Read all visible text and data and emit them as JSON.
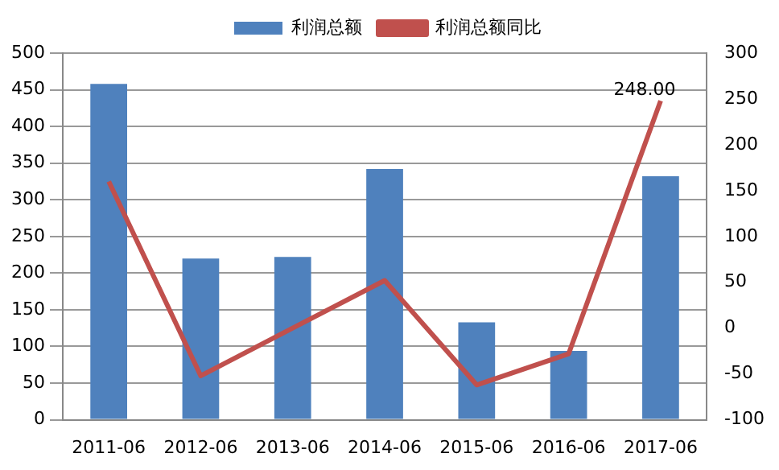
{
  "chart_data": {
    "type": "bar",
    "categories": [
      "2011-06",
      "2012-06",
      "2013-06",
      "2014-06",
      "2015-06",
      "2016-06",
      "2017-06"
    ],
    "series": [
      {
        "name": "利润总额",
        "color": "#4f81bd",
        "values": [
          458,
          220,
          222,
          342,
          133,
          94,
          332
        ]
      },
      {
        "name": "利润总额同比",
        "type": "line",
        "axis": "y2",
        "color": "#c0504d",
        "values": [
          160,
          -52,
          0,
          52,
          -62,
          -28,
          248
        ],
        "value_labels": [
          null,
          null,
          null,
          null,
          null,
          null,
          "248.00"
        ]
      }
    ],
    "ylim": [
      0,
      500
    ],
    "yticks": [
      0,
      50,
      100,
      150,
      200,
      250,
      300,
      350,
      400,
      450,
      500
    ],
    "y2lim": [
      -100,
      300
    ],
    "y2ticks": [
      -100,
      -50,
      0,
      50,
      100,
      150,
      200,
      250,
      300
    ],
    "grid": "y",
    "legend": "top",
    "marker": "none"
  }
}
